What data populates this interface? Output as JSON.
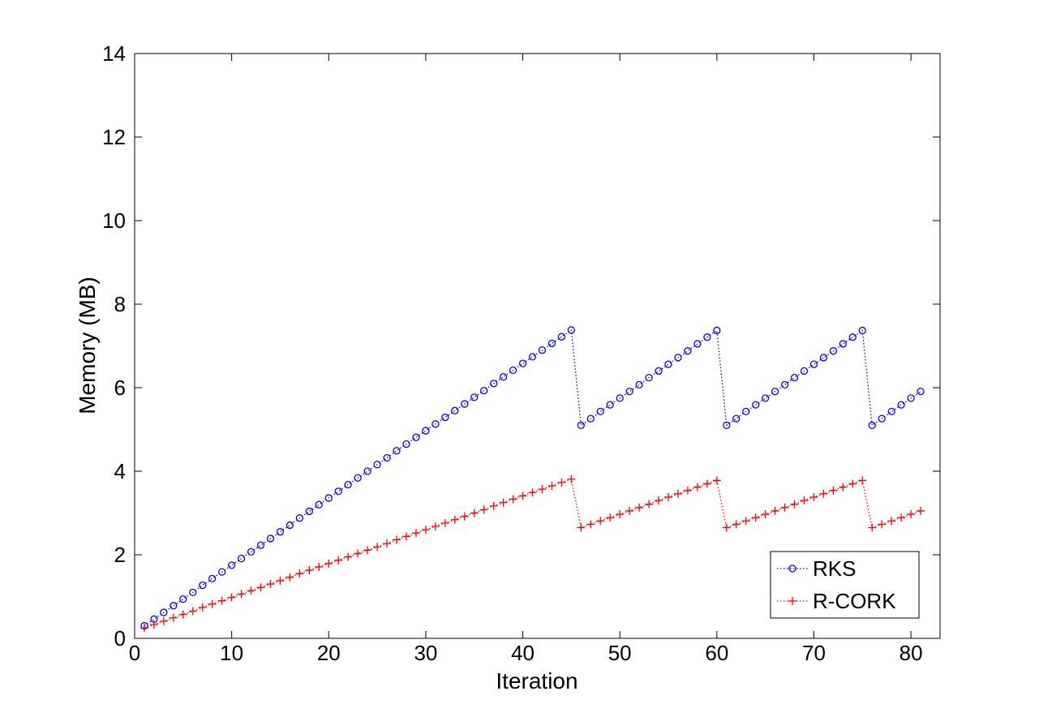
{
  "chart_data": {
    "type": "line",
    "xlabel": "Iteration",
    "ylabel": "Memory (MB)",
    "xlim": [
      0,
      83
    ],
    "ylim": [
      0,
      14
    ],
    "xticks": [
      0,
      10,
      20,
      30,
      40,
      50,
      60,
      70,
      80
    ],
    "yticks": [
      0,
      2,
      4,
      6,
      8,
      10,
      12,
      14
    ],
    "grid": false,
    "legend_position": "bottom-right",
    "series": [
      {
        "name": "RKS",
        "color": "#0000ff",
        "marker": "circle",
        "line_style": "dotted",
        "x": [
          1,
          2,
          3,
          4,
          5,
          6,
          7,
          8,
          9,
          10,
          11,
          12,
          13,
          14,
          15,
          16,
          17,
          18,
          19,
          20,
          21,
          22,
          23,
          24,
          25,
          26,
          27,
          28,
          29,
          30,
          31,
          32,
          33,
          34,
          35,
          36,
          37,
          38,
          39,
          40,
          41,
          42,
          43,
          44,
          45,
          46,
          47,
          48,
          49,
          50,
          51,
          52,
          53,
          54,
          55,
          56,
          57,
          58,
          59,
          60,
          61,
          62,
          63,
          64,
          65,
          66,
          67,
          68,
          69,
          70,
          71,
          72,
          73,
          74,
          75,
          76,
          77,
          78,
          79,
          80,
          81
        ],
        "y": [
          0.3,
          0.46,
          0.62,
          0.78,
          0.94,
          1.1,
          1.27,
          1.43,
          1.59,
          1.75,
          1.91,
          2.07,
          2.23,
          2.39,
          2.55,
          2.71,
          2.88,
          3.04,
          3.2,
          3.36,
          3.52,
          3.68,
          3.84,
          4.0,
          4.16,
          4.32,
          4.49,
          4.65,
          4.81,
          4.97,
          5.13,
          5.29,
          5.45,
          5.61,
          5.77,
          5.93,
          6.1,
          6.26,
          6.42,
          6.58,
          6.74,
          6.9,
          7.06,
          7.22,
          7.38,
          5.1,
          5.26,
          5.43,
          5.59,
          5.75,
          5.91,
          6.07,
          6.24,
          6.4,
          6.56,
          6.72,
          6.88,
          7.05,
          7.21,
          7.37,
          5.1,
          5.26,
          5.43,
          5.59,
          5.75,
          5.91,
          6.07,
          6.24,
          6.4,
          6.56,
          6.72,
          6.88,
          7.05,
          7.21,
          7.37,
          5.1,
          5.26,
          5.43,
          5.59,
          5.75,
          5.91
        ]
      },
      {
        "name": "R-CORK",
        "color": "#ff0000",
        "marker": "plus",
        "line_style": "dotted",
        "x": [
          1,
          2,
          3,
          4,
          5,
          6,
          7,
          8,
          9,
          10,
          11,
          12,
          13,
          14,
          15,
          16,
          17,
          18,
          19,
          20,
          21,
          22,
          23,
          24,
          25,
          26,
          27,
          28,
          29,
          30,
          31,
          32,
          33,
          34,
          35,
          36,
          37,
          38,
          39,
          40,
          41,
          42,
          43,
          44,
          45,
          46,
          47,
          48,
          49,
          50,
          51,
          52,
          53,
          54,
          55,
          56,
          57,
          58,
          59,
          60,
          61,
          62,
          63,
          64,
          65,
          66,
          67,
          68,
          69,
          70,
          71,
          72,
          73,
          74,
          75,
          76,
          77,
          78,
          79,
          80,
          81
        ],
        "y": [
          0.25,
          0.33,
          0.41,
          0.49,
          0.57,
          0.65,
          0.74,
          0.82,
          0.9,
          0.98,
          1.06,
          1.14,
          1.22,
          1.3,
          1.38,
          1.46,
          1.55,
          1.63,
          1.71,
          1.79,
          1.87,
          1.95,
          2.03,
          2.11,
          2.19,
          2.27,
          2.36,
          2.44,
          2.52,
          2.6,
          2.68,
          2.76,
          2.84,
          2.92,
          3.0,
          3.08,
          3.17,
          3.25,
          3.33,
          3.41,
          3.49,
          3.57,
          3.65,
          3.73,
          3.81,
          2.65,
          2.73,
          2.81,
          2.89,
          2.97,
          3.05,
          3.13,
          3.21,
          3.3,
          3.38,
          3.46,
          3.54,
          3.62,
          3.7,
          3.78,
          2.65,
          2.73,
          2.81,
          2.89,
          2.97,
          3.05,
          3.13,
          3.21,
          3.3,
          3.38,
          3.46,
          3.54,
          3.62,
          3.7,
          3.78,
          2.65,
          2.73,
          2.81,
          2.89,
          2.97,
          3.05
        ]
      }
    ]
  }
}
